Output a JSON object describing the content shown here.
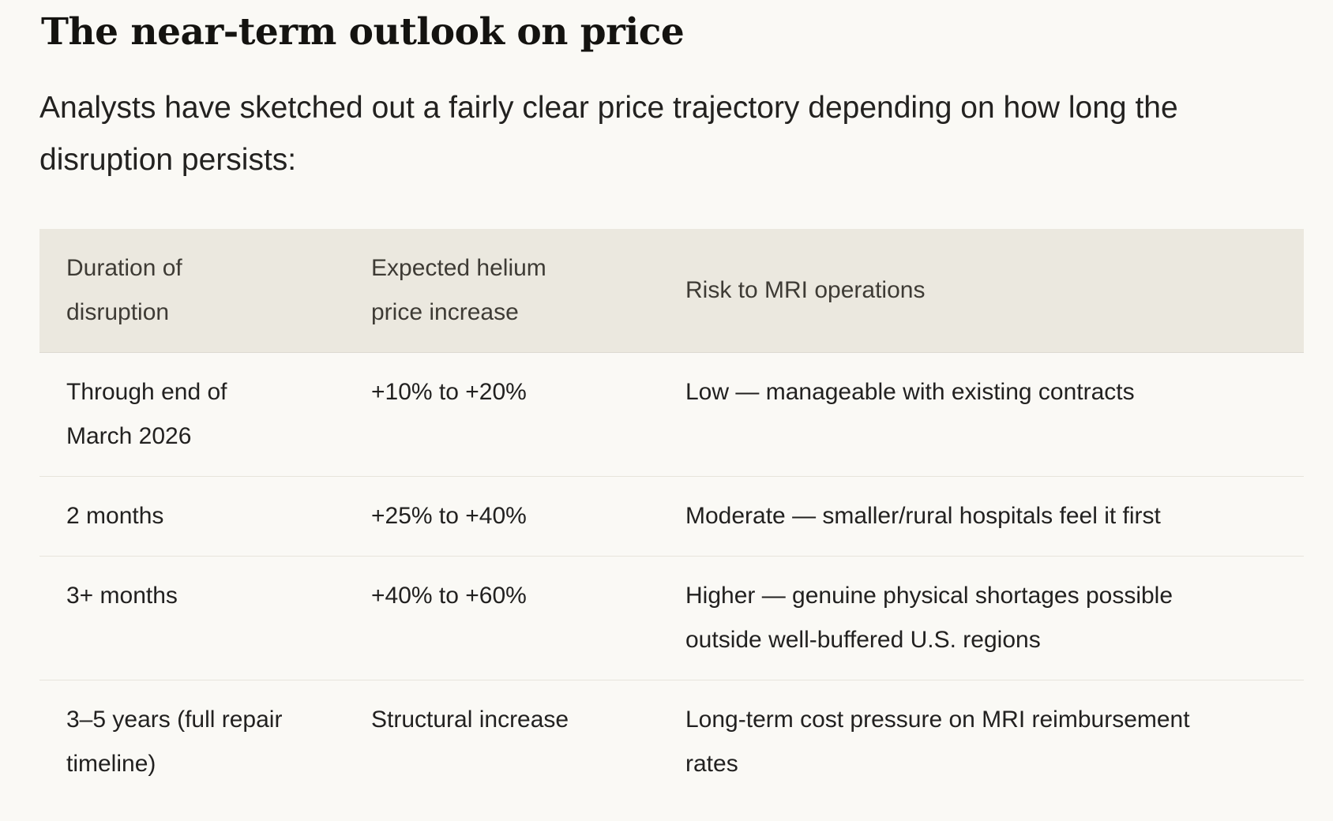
{
  "page": {
    "heading": "The near-term outlook on price",
    "intro": "Analysts have sketched out a fairly clear price trajectory depending on how long the disruption persists:",
    "background_color": "#faf9f5",
    "heading_color": "#141310",
    "body_text_color": "#232220"
  },
  "table": {
    "header_background_color": "#ebe8df",
    "header_text_color": "#3e3b35",
    "divider_color": "#e7e4dc",
    "columns": [
      "Duration of disruption",
      "Expected helium price increase",
      "Risk to MRI operations"
    ],
    "rows": [
      {
        "duration": "Through end of March 2026",
        "price_increase": "+10% to +20%",
        "risk": "Low — manageable with existing contracts"
      },
      {
        "duration": "2 months",
        "price_increase": "+25% to +40%",
        "risk": "Moderate — smaller/rural hospitals feel it first"
      },
      {
        "duration": "3+ months",
        "price_increase": "+40% to +60%",
        "risk": "Higher — genuine physical shortages possible outside well-buffered U.S. regions"
      },
      {
        "duration": "3–5 years (full repair timeline)",
        "price_increase": "Structural increase",
        "risk": "Long-term cost pressure on MRI reimbursement rates"
      }
    ]
  }
}
